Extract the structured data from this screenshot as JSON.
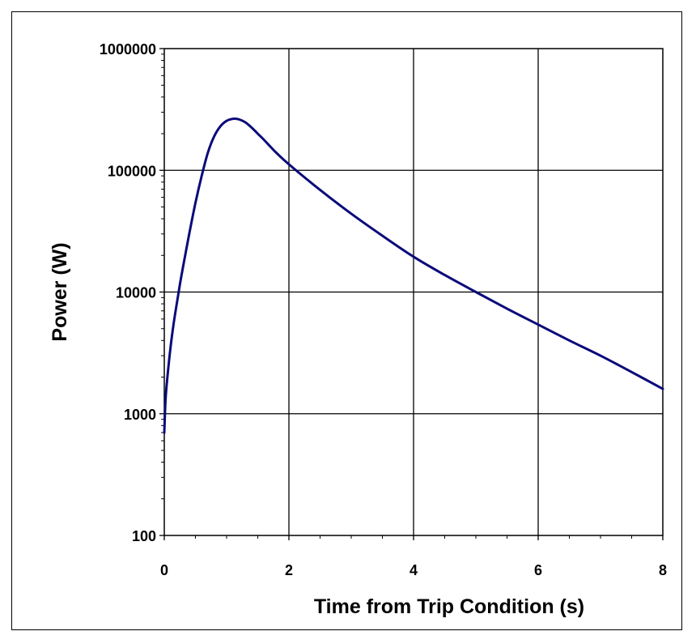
{
  "chart_data": {
    "type": "line",
    "title": "",
    "xlabel": "Time from Trip Condition (s)",
    "ylabel": "Power (W)",
    "xlim": [
      0,
      8
    ],
    "ylim": [
      100,
      1000000
    ],
    "y_scale": "log",
    "grid": true,
    "legend": "none",
    "x_ticks": [
      "0",
      "2",
      "4",
      "6",
      "8"
    ],
    "y_ticks": [
      "100",
      "1000",
      "10000",
      "100000",
      "1000000"
    ],
    "series": [
      {
        "color": "#0a0a7a",
        "x": [
          0,
          0.02,
          0.05,
          0.1,
          0.15,
          0.2,
          0.25,
          0.3,
          0.4,
          0.5,
          0.6,
          0.7,
          0.8,
          0.9,
          1.0,
          1.1,
          1.15,
          1.2,
          1.3,
          1.4,
          1.5,
          1.6,
          1.7,
          1.8,
          2.0,
          2.5,
          3.0,
          3.5,
          4.0,
          4.5,
          5.0,
          5.5,
          6.0,
          6.5,
          7.0,
          7.5,
          8.0
        ],
        "y": [
          700,
          1300,
          2000,
          3500,
          5500,
          8000,
          11500,
          16000,
          30000,
          54000,
          90000,
          140000,
          190000,
          230000,
          255000,
          265000,
          265000,
          262000,
          248000,
          225000,
          200000,
          178000,
          157000,
          139000,
          112000,
          69000,
          44000,
          29000,
          19500,
          13800,
          10000,
          7300,
          5400,
          4000,
          3000,
          2200,
          1600
        ]
      }
    ]
  }
}
